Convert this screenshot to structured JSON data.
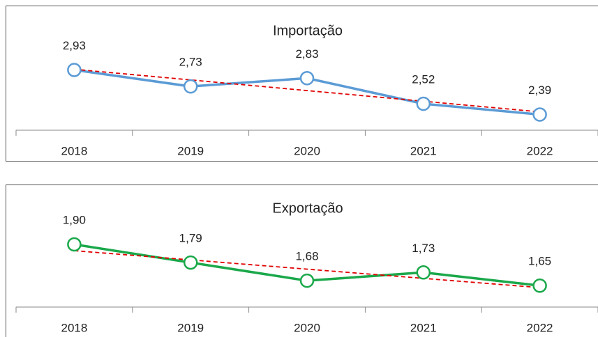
{
  "chart_data": [
    {
      "type": "line",
      "title": "Importação",
      "categories": [
        "2018",
        "2019",
        "2020",
        "2021",
        "2022"
      ],
      "values": [
        2.93,
        2.73,
        2.83,
        2.52,
        2.39
      ],
      "value_labels": [
        "2,93",
        "2,73",
        "2,83",
        "2,52",
        "2,39"
      ],
      "color": "#5b9bd5",
      "ylim": [
        2.2,
        3.6
      ],
      "trendline": true,
      "trendline_color": "#e00000"
    },
    {
      "type": "line",
      "title": "Exportação",
      "categories": [
        "2018",
        "2019",
        "2020",
        "2021",
        "2022"
      ],
      "values": [
        1.9,
        1.79,
        1.68,
        1.73,
        1.65
      ],
      "value_labels": [
        "1,90",
        "1,79",
        "1,68",
        "1,73",
        "1,65"
      ],
      "color": "#1aa84a",
      "ylim": [
        1.52,
        2.2
      ],
      "trendline": true,
      "trendline_color": "#e00000"
    }
  ]
}
